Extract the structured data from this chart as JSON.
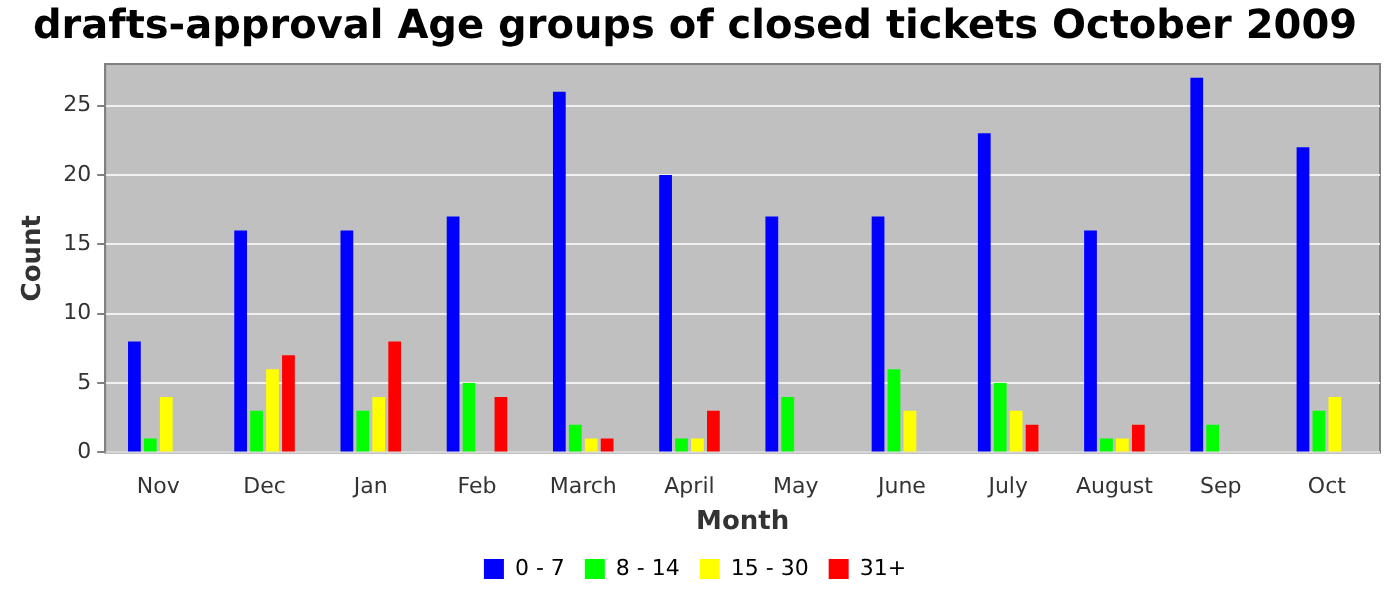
{
  "chart_data": {
    "type": "bar",
    "title": "drafts-approval Age groups of closed tickets October 2009",
    "xlabel": "Month",
    "ylabel": "Count",
    "categories": [
      "Nov",
      "Dec",
      "Jan",
      "Feb",
      "March",
      "April",
      "May",
      "June",
      "July",
      "August",
      "Sep",
      "Oct"
    ],
    "series": [
      {
        "name": "0 - 7",
        "color": "#0000ff",
        "values": [
          8,
          16,
          16,
          17,
          26,
          20,
          17,
          17,
          23,
          16,
          27,
          22
        ]
      },
      {
        "name": "8 - 14",
        "color": "#00ff00",
        "values": [
          1,
          3,
          3,
          5,
          2,
          1,
          4,
          6,
          5,
          1,
          2,
          3
        ]
      },
      {
        "name": "15 - 30",
        "color": "#ffff00",
        "values": [
          4,
          6,
          4,
          0,
          1,
          1,
          0,
          3,
          3,
          1,
          0,
          4
        ]
      },
      {
        "name": "31+",
        "color": "#ff0000",
        "values": [
          0,
          7,
          8,
          4,
          1,
          3,
          0,
          0,
          2,
          2,
          0,
          0
        ]
      }
    ],
    "ylim": [
      0,
      28
    ],
    "yticks": [
      0,
      5,
      10,
      15,
      20,
      25
    ],
    "grid": "y",
    "legend": "bottom"
  }
}
